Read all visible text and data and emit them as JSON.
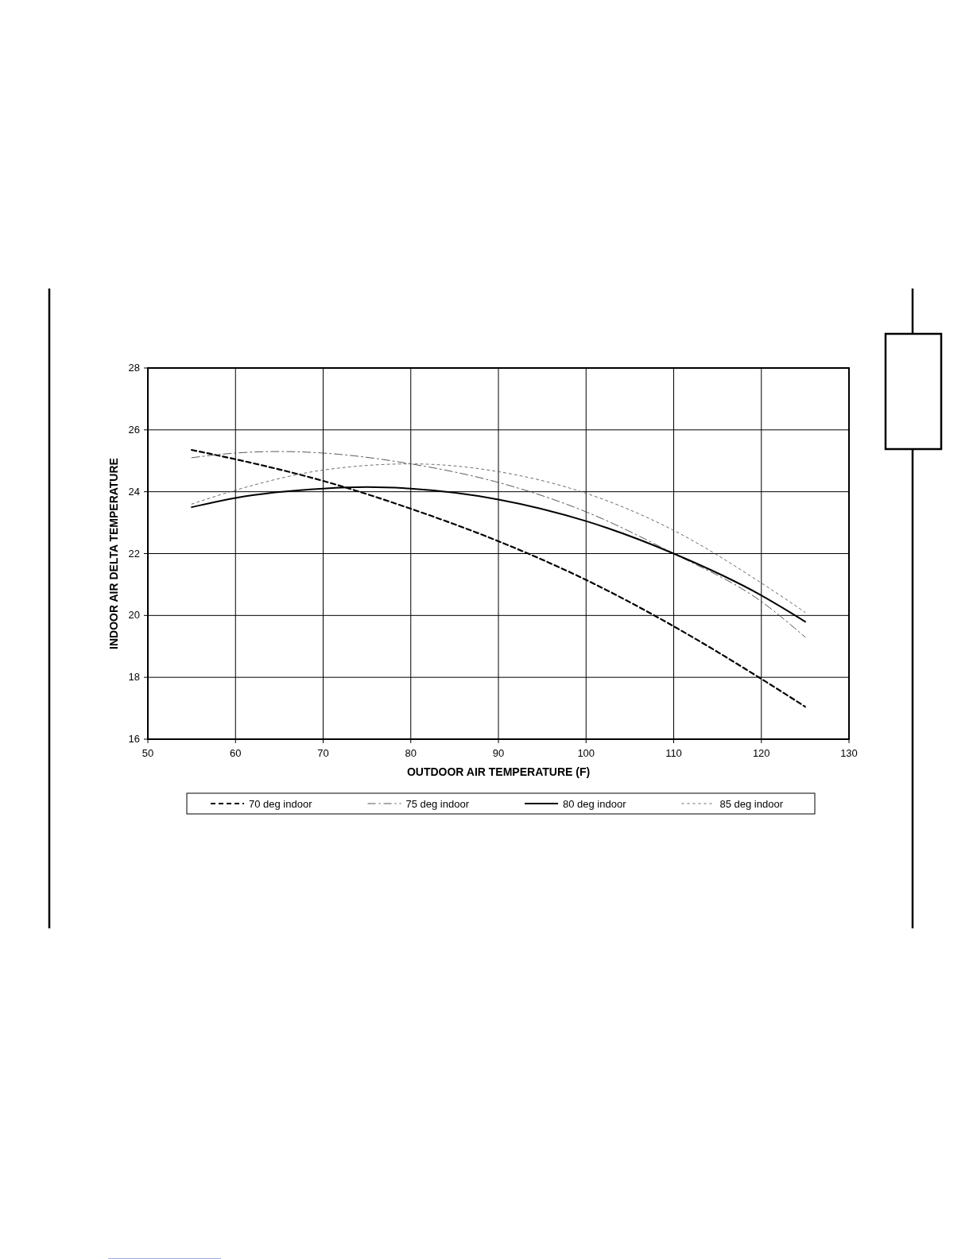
{
  "chart_data": {
    "type": "line",
    "xlabel": "OUTDOOR AIR TEMPERATURE  (F)",
    "ylabel": "INDOOR AIR DELTA TEMPERATURE",
    "xlim": [
      50,
      130
    ],
    "xticks": [
      50,
      60,
      70,
      80,
      90,
      100,
      110,
      120,
      130
    ],
    "ylim": [
      16,
      28
    ],
    "yticks": [
      16,
      18,
      20,
      22,
      24,
      26,
      28
    ],
    "grid": true,
    "legend": "bottom",
    "marker": "none",
    "series": [
      {
        "name": "70 deg indoor",
        "color": "#000000",
        "line_style": "dashed",
        "x": [
          55,
          60,
          70,
          80,
          90,
          100,
          110,
          120,
          125
        ],
        "values": [
          25.35,
          25.05,
          24.35,
          23.45,
          22.4,
          21.15,
          19.65,
          17.95,
          17.05
        ]
      },
      {
        "name": "75 deg indoor",
        "color": "#444444",
        "line_style": "dashdot",
        "x": [
          55,
          60,
          65,
          70,
          80,
          90,
          100,
          110,
          120,
          125
        ],
        "values": [
          25.1,
          25.25,
          25.3,
          25.25,
          24.9,
          24.3,
          23.35,
          22.0,
          20.45,
          19.3
        ]
      },
      {
        "name": "80 deg indoor",
        "color": "#000000",
        "line_style": "solid",
        "x": [
          55,
          60,
          70,
          75,
          80,
          90,
          100,
          110,
          120,
          125
        ],
        "values": [
          23.5,
          23.8,
          24.1,
          24.15,
          24.1,
          23.75,
          23.05,
          22.0,
          20.65,
          19.8
        ]
      },
      {
        "name": "85 deg indoor",
        "color": "#555555",
        "line_style": "dotted",
        "x": [
          55,
          60,
          70,
          80,
          90,
          100,
          110,
          120,
          125
        ],
        "values": [
          23.6,
          24.05,
          24.7,
          24.9,
          24.65,
          23.95,
          22.75,
          21.05,
          20.1
        ]
      }
    ]
  }
}
